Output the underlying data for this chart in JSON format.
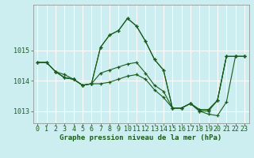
{
  "title": "Graphe pression niveau de la mer (hPa)",
  "background_color": "#cceef0",
  "grid_color": "#ffffff",
  "line_color": "#1a5c1a",
  "series": [
    {
      "x": [
        0,
        1,
        2,
        3,
        4,
        5,
        6,
        7,
        8,
        9,
        10,
        11,
        12,
        13,
        14,
        15,
        16,
        17,
        18,
        19,
        20,
        21,
        22,
        23
      ],
      "y": [
        1014.6,
        1014.6,
        1014.3,
        1014.1,
        1014.05,
        1013.85,
        1013.9,
        1015.1,
        1015.5,
        1015.65,
        1016.05,
        1015.8,
        1015.3,
        1014.7,
        1014.35,
        1013.1,
        1013.1,
        1013.25,
        1013.05,
        1013.05,
        1013.35,
        1014.8,
        1014.8,
        1014.8
      ]
    },
    {
      "x": [
        0,
        1,
        2,
        3,
        4,
        5,
        6,
        7,
        8,
        9,
        10,
        11,
        12,
        13,
        14,
        15,
        16,
        17,
        18,
        19,
        20,
        21,
        22,
        23
      ],
      "y": [
        1014.6,
        1014.6,
        1014.3,
        1014.1,
        1014.05,
        1013.85,
        1013.9,
        1014.25,
        1014.35,
        1014.45,
        1014.55,
        1014.6,
        1014.25,
        1013.85,
        1013.65,
        1013.1,
        1013.1,
        1013.25,
        1013.05,
        1013.05,
        1013.35,
        1014.8,
        1014.8,
        1014.8
      ]
    },
    {
      "x": [
        0,
        1,
        2,
        3,
        4,
        5,
        6,
        7,
        8,
        9,
        10,
        11,
        12,
        13,
        14,
        15,
        16,
        17,
        18,
        19,
        20,
        21,
        22,
        23
      ],
      "y": [
        1014.6,
        1014.6,
        1014.3,
        1014.1,
        1014.05,
        1013.85,
        1013.9,
        1013.9,
        1013.95,
        1014.05,
        1014.15,
        1014.2,
        1014.05,
        1013.7,
        1013.45,
        1013.1,
        1013.1,
        1013.25,
        1013.0,
        1013.0,
        1013.35,
        1014.8,
        1014.8,
        1014.8
      ]
    },
    {
      "x": [
        2,
        3,
        4,
        5,
        6,
        7,
        8,
        9,
        10,
        11,
        12,
        13,
        14,
        15,
        16,
        17,
        18,
        19,
        20,
        21,
        22,
        23
      ],
      "y": [
        1014.3,
        1014.2,
        1014.05,
        1013.85,
        1013.9,
        1015.1,
        1015.5,
        1015.65,
        1016.05,
        1015.8,
        1015.3,
        1014.7,
        1014.35,
        1013.1,
        1013.1,
        1013.25,
        1013.0,
        1012.9,
        1012.85,
        1013.3,
        1014.8,
        1014.8
      ]
    }
  ],
  "ylim": [
    1012.6,
    1016.5
  ],
  "yticks": [
    1013,
    1014,
    1015
  ],
  "xlim": [
    -0.5,
    23.5
  ],
  "xticks": [
    0,
    1,
    2,
    3,
    4,
    5,
    6,
    7,
    8,
    9,
    10,
    11,
    12,
    13,
    14,
    15,
    16,
    17,
    18,
    19,
    20,
    21,
    22,
    23
  ],
  "tick_fontsize": 6,
  "title_fontsize": 6.5
}
